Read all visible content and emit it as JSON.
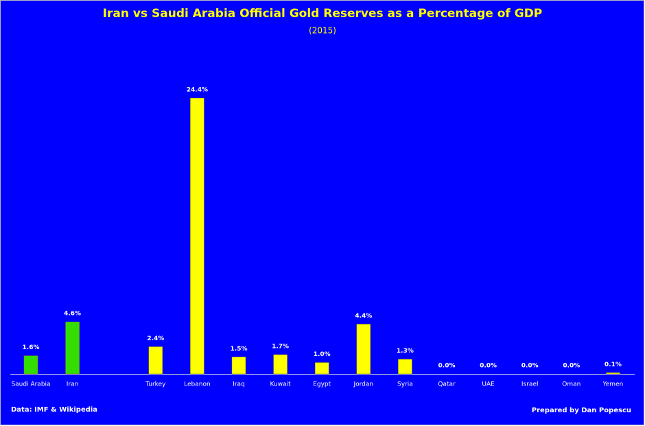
{
  "chart_data": {
    "type": "bar",
    "title": "Iran vs Saudi Arabia Official Gold Reserves as a Percentage of GDP",
    "subtitle": "(2015)",
    "categories": [
      "Saudi Arabia",
      "Iran",
      null,
      "Turkey",
      "Lebanon",
      "Iraq",
      "Kuwait",
      "Egypt",
      "Jordan",
      "Syria",
      "Qatar",
      "UAE",
      "Israel",
      "Oman",
      "Yemen"
    ],
    "values": [
      1.6,
      4.6,
      null,
      2.4,
      24.4,
      1.5,
      1.7,
      1.0,
      4.4,
      1.3,
      0.0,
      0.0,
      0.0,
      0.0,
      0.1
    ],
    "value_labels": [
      "1.6%",
      "4.6%",
      null,
      "2.4%",
      "24.4%",
      "1.5%",
      "1.7%",
      "1.0%",
      "4.4%",
      "1.3%",
      "0.0%",
      "0.0%",
      "0.0%",
      "0.0%",
      "0.1%"
    ],
    "colors": [
      "#33dd00",
      "#33dd00",
      null,
      "#ffff00",
      "#ffff00",
      "#ffff00",
      "#ffff00",
      "#ffff00",
      "#ffff00",
      "#ffff00",
      "#ffff00",
      "#ffff00",
      "#ffff00",
      "#ffff00",
      "#ffff00"
    ],
    "source": "Data: IMF & Wikipedia",
    "credit": "Prepared by Dan Popescu"
  }
}
